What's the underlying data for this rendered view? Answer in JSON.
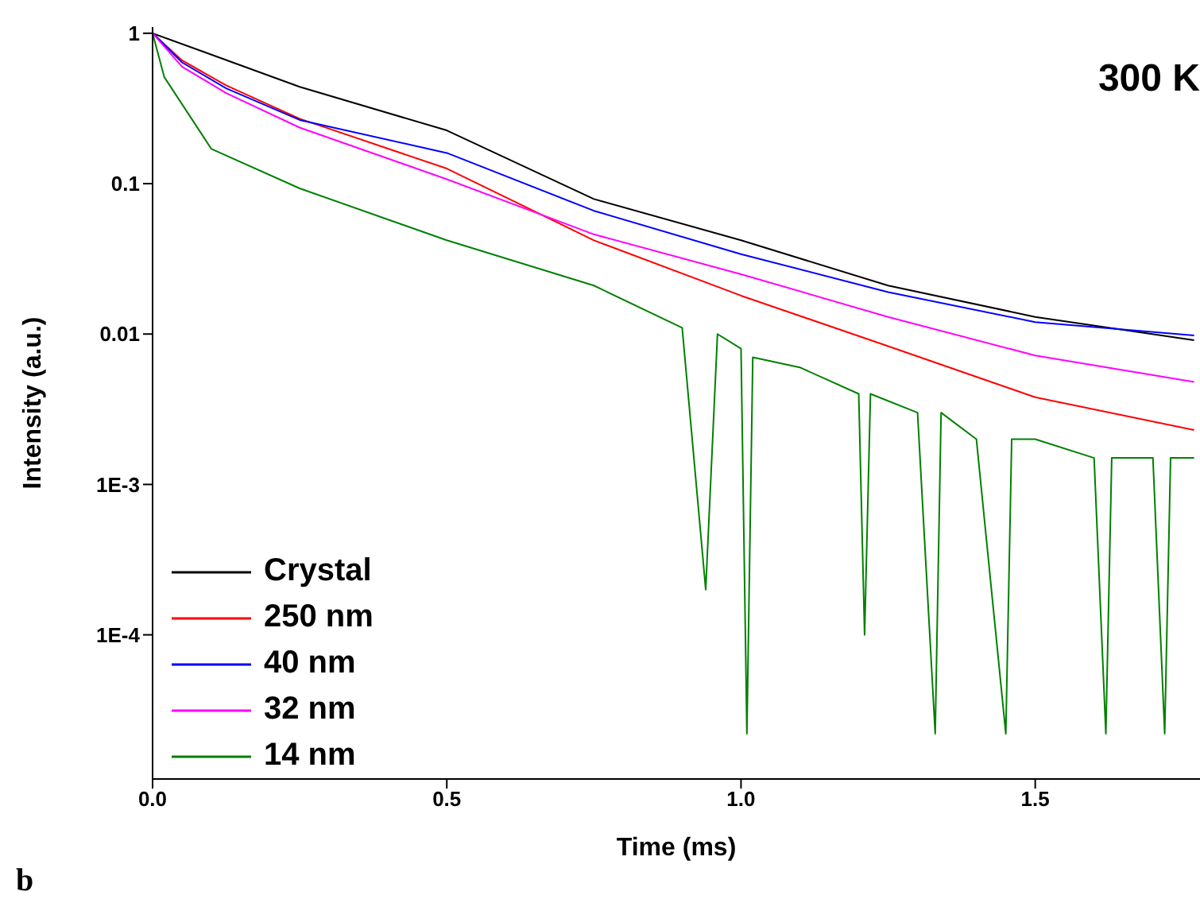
{
  "chart_data": {
    "type": "line",
    "xlabel": "Time (ms)",
    "ylabel": "Intensity (a.u.)",
    "annotations": [
      "300 K",
      "b"
    ],
    "log": "y",
    "xlim": [
      0,
      1.78
    ],
    "ylim": [
      1.1e-05,
      1.1
    ],
    "xticks": [
      {
        "value": 0,
        "label": "0.0"
      },
      0.5,
      {
        "value": 1,
        "label": "1.0"
      },
      1.5
    ],
    "yticks": [
      1,
      0.1,
      0.01,
      {
        "value": 0.001,
        "label": "1E-3"
      },
      {
        "value": 0.0001,
        "label": "1E-4"
      }
    ],
    "grid": false,
    "legend": "bottom left",
    "marker": "none",
    "line_style": "solid",
    "series": [
      {
        "name": "Crystal",
        "color": "#000000",
        "x": [
          0,
          0.25,
          0.5,
          0.75,
          1.0,
          1.25,
          1.5,
          1.77
        ],
        "values": [
          1,
          0.44,
          0.226,
          0.079,
          0.042,
          0.021,
          0.013,
          0.0091
        ]
      },
      {
        "name": "250 nm",
        "color": "#ff0000",
        "x": [
          0,
          0.05,
          0.125,
          0.25,
          0.5,
          0.75,
          1.0,
          1.25,
          1.5,
          1.77
        ],
        "values": [
          1,
          0.66,
          0.45,
          0.27,
          0.126,
          0.042,
          0.018,
          0.0083,
          0.0038,
          0.0023
        ]
      },
      {
        "name": "40 nm",
        "color": "#0000ff",
        "x": [
          0,
          0.05,
          0.125,
          0.25,
          0.5,
          0.75,
          1.0,
          1.25,
          1.5,
          1.77
        ],
        "values": [
          1,
          0.64,
          0.43,
          0.265,
          0.16,
          0.066,
          0.034,
          0.019,
          0.012,
          0.0098
        ]
      },
      {
        "name": "32 nm",
        "color": "#ff00ff",
        "x": [
          0,
          0.05,
          0.125,
          0.25,
          0.5,
          0.75,
          1.0,
          1.25,
          1.5,
          1.77
        ],
        "values": [
          1,
          0.6,
          0.4,
          0.236,
          0.107,
          0.046,
          0.025,
          0.013,
          0.0072,
          0.0048
        ]
      },
      {
        "name": "14 nm",
        "color": "#008000",
        "x": [
          0,
          0.02,
          0.1,
          0.25,
          0.5,
          0.75,
          0.9,
          0.94,
          0.96,
          1.0,
          1.01,
          1.02,
          1.1,
          1.2,
          1.21,
          1.22,
          1.3,
          1.33,
          1.34,
          1.4,
          1.45,
          1.46,
          1.5,
          1.6,
          1.62,
          1.63,
          1.7,
          1.72,
          1.73,
          1.77
        ],
        "values": [
          1,
          0.51,
          0.17,
          0.093,
          0.042,
          0.021,
          0.011,
          0.0002,
          0.01,
          0.008,
          2.2e-05,
          0.007,
          0.006,
          0.004,
          0.0001,
          0.004,
          0.003,
          2.2e-05,
          0.003,
          0.002,
          2.2e-05,
          0.002,
          0.002,
          0.0015,
          2.2e-05,
          0.0015,
          0.0015,
          2.2e-05,
          0.0015,
          0.0015
        ]
      }
    ]
  }
}
